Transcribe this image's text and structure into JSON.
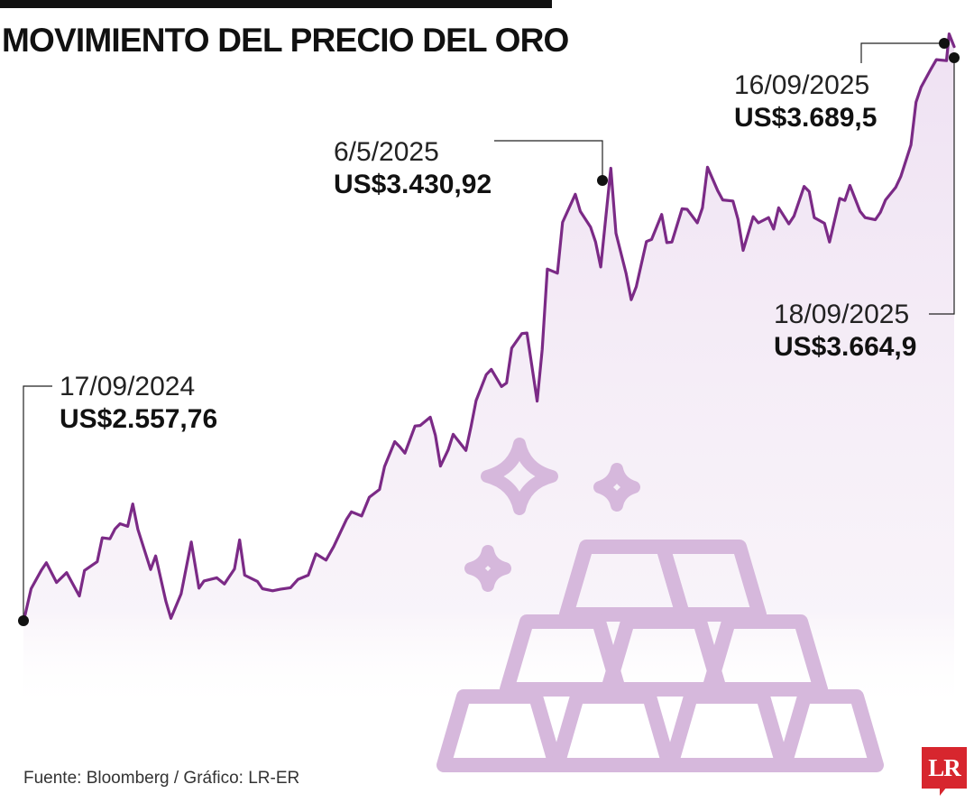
{
  "header": {
    "title": "MOVIMIENTO DEL PRECIO DEL ORO"
  },
  "chart_data": {
    "type": "line",
    "title": "MOVIMIENTO DEL PRECIO DEL ORO",
    "xlabel": "",
    "ylabel": "",
    "xlim": [
      "2024-09-17",
      "2025-09-18"
    ],
    "ylim": [
      2300,
      3720
    ],
    "grid": false,
    "line_color": "#7b2a86",
    "fill_color": "#ecdcf0",
    "series": [
      {
        "points": [
          [
            "2024-09-17",
            2557.76
          ],
          [
            "2024-09-20",
            2622
          ],
          [
            "2024-09-24",
            2657
          ],
          [
            "2024-09-26",
            2672
          ],
          [
            "2024-09-30",
            2634
          ],
          [
            "2024-10-04",
            2653
          ],
          [
            "2024-10-09",
            2608
          ],
          [
            "2024-10-11",
            2657
          ],
          [
            "2024-10-16",
            2674
          ],
          [
            "2024-10-18",
            2720
          ],
          [
            "2024-10-21",
            2718
          ],
          [
            "2024-10-23",
            2737
          ],
          [
            "2024-10-25",
            2747
          ],
          [
            "2024-10-28",
            2742
          ],
          [
            "2024-10-30",
            2785
          ],
          [
            "2024-11-01",
            2736
          ],
          [
            "2024-11-06",
            2659
          ],
          [
            "2024-11-08",
            2685
          ],
          [
            "2024-11-12",
            2598
          ],
          [
            "2024-11-14",
            2565
          ],
          [
            "2024-11-18",
            2612
          ],
          [
            "2024-11-22",
            2712
          ],
          [
            "2024-11-25",
            2623
          ],
          [
            "2024-11-27",
            2637
          ],
          [
            "2024-12-02",
            2643
          ],
          [
            "2024-12-05",
            2631
          ],
          [
            "2024-12-09",
            2660
          ],
          [
            "2024-12-11",
            2716
          ],
          [
            "2024-12-13",
            2648
          ],
          [
            "2024-12-18",
            2636
          ],
          [
            "2024-12-20",
            2622
          ],
          [
            "2024-12-24",
            2618
          ],
          [
            "2024-12-27",
            2621
          ],
          [
            "2024-12-31",
            2624
          ],
          [
            "2025-01-03",
            2640
          ],
          [
            "2025-01-07",
            2648
          ],
          [
            "2025-01-10",
            2689
          ],
          [
            "2025-01-14",
            2677
          ],
          [
            "2025-01-17",
            2703
          ],
          [
            "2025-01-22",
            2755
          ],
          [
            "2025-01-24",
            2770
          ],
          [
            "2025-01-28",
            2762
          ],
          [
            "2025-01-31",
            2798
          ],
          [
            "2025-02-04",
            2813
          ],
          [
            "2025-02-06",
            2857
          ],
          [
            "2025-02-10",
            2905
          ],
          [
            "2025-02-12",
            2895
          ],
          [
            "2025-02-14",
            2883
          ],
          [
            "2025-02-18",
            2935
          ],
          [
            "2025-02-20",
            2936
          ],
          [
            "2025-02-24",
            2952
          ],
          [
            "2025-02-26",
            2917
          ],
          [
            "2025-02-28",
            2858
          ],
          [
            "2025-03-03",
            2889
          ],
          [
            "2025-03-05",
            2919
          ],
          [
            "2025-03-10",
            2888
          ],
          [
            "2025-03-12",
            2934
          ],
          [
            "2025-03-14",
            2984
          ],
          [
            "2025-03-18",
            3034
          ],
          [
            "2025-03-20",
            3044
          ],
          [
            "2025-03-24",
            3011
          ],
          [
            "2025-03-26",
            3018
          ],
          [
            "2025-03-28",
            3085
          ],
          [
            "2025-04-01",
            3113
          ],
          [
            "2025-04-03",
            3114
          ],
          [
            "2025-04-07",
            2983
          ],
          [
            "2025-04-09",
            3082
          ],
          [
            "2025-04-11",
            3237
          ],
          [
            "2025-04-15",
            3229
          ],
          [
            "2025-04-17",
            3327
          ],
          [
            "2025-04-22",
            3381
          ],
          [
            "2025-04-24",
            3348
          ],
          [
            "2025-04-28",
            3318
          ],
          [
            "2025-04-30",
            3289
          ],
          [
            "2025-05-02",
            3241
          ],
          [
            "2025-05-06",
            3430.92
          ],
          [
            "2025-05-08",
            3306
          ],
          [
            "2025-05-12",
            3228
          ],
          [
            "2025-05-14",
            3178
          ],
          [
            "2025-05-16",
            3203
          ],
          [
            "2025-05-20",
            3290
          ],
          [
            "2025-05-22",
            3294
          ],
          [
            "2025-05-26",
            3342
          ],
          [
            "2025-05-28",
            3288
          ],
          [
            "2025-05-30",
            3289
          ],
          [
            "2025-06-03",
            3353
          ],
          [
            "2025-06-05",
            3352
          ],
          [
            "2025-06-09",
            3326
          ],
          [
            "2025-06-11",
            3355
          ],
          [
            "2025-06-13",
            3433
          ],
          [
            "2025-06-17",
            3388
          ],
          [
            "2025-06-19",
            3370
          ],
          [
            "2025-06-23",
            3368
          ],
          [
            "2025-06-25",
            3333
          ],
          [
            "2025-06-27",
            3273
          ],
          [
            "2025-07-01",
            3338
          ],
          [
            "2025-07-03",
            3326
          ],
          [
            "2025-07-07",
            3336
          ],
          [
            "2025-07-09",
            3314
          ],
          [
            "2025-07-11",
            3355
          ],
          [
            "2025-07-15",
            3324
          ],
          [
            "2025-07-17",
            3339
          ],
          [
            "2025-07-21",
            3396
          ],
          [
            "2025-07-23",
            3386
          ],
          [
            "2025-07-25",
            3336
          ],
          [
            "2025-07-29",
            3325
          ],
          [
            "2025-07-31",
            3289
          ],
          [
            "2025-08-04",
            3373
          ],
          [
            "2025-08-06",
            3369
          ],
          [
            "2025-08-08",
            3398
          ],
          [
            "2025-08-12",
            3348
          ],
          [
            "2025-08-14",
            3336
          ],
          [
            "2025-08-18",
            3332
          ],
          [
            "2025-08-20",
            3346
          ],
          [
            "2025-08-22",
            3370
          ],
          [
            "2025-08-26",
            3394
          ],
          [
            "2025-08-28",
            3415
          ],
          [
            "2025-09-01",
            3476
          ],
          [
            "2025-09-03",
            3558
          ],
          [
            "2025-09-05",
            3587
          ],
          [
            "2025-09-09",
            3623
          ],
          [
            "2025-09-11",
            3640
          ],
          [
            "2025-09-15",
            3638
          ],
          [
            "2025-09-16",
            3689.5
          ],
          [
            "2025-09-18",
            3664.9
          ]
        ]
      }
    ],
    "annotations": [
      {
        "date": "17/09/2024",
        "value": "US$2.557,76",
        "x": "2024-09-17",
        "y": 2557.76
      },
      {
        "date": "6/5/2025",
        "value": "US$3.430,92",
        "x": "2025-05-06",
        "y": 3430.92
      },
      {
        "date": "16/09/2025",
        "value": "US$3.689,5",
        "x": "2025-09-16",
        "y": 3689.5
      },
      {
        "date": "18/09/2025",
        "value": "US$3.664,9",
        "x": "2025-09-18",
        "y": 3664.9
      }
    ]
  },
  "footer": {
    "source": "Fuente: Bloomberg / Gráfico: LR-ER",
    "logo": "LR"
  }
}
